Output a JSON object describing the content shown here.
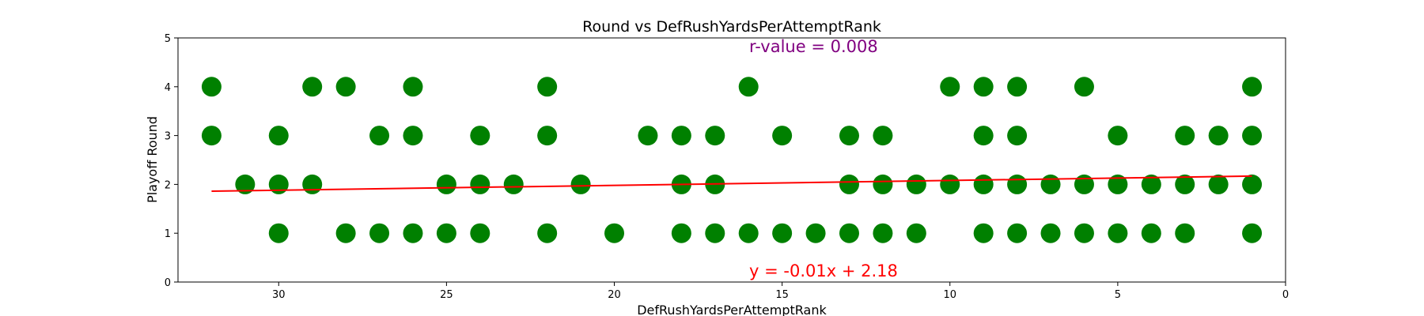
{
  "chart_data": {
    "type": "scatter",
    "title": "Round vs DefRushYardsPerAttemptRank",
    "xlabel": "DefRushYardsPerAttemptRank",
    "ylabel": "Playoff Round",
    "xlim": [
      33,
      0
    ],
    "ylim": [
      0,
      5
    ],
    "x_inverted": true,
    "x_ticks": [
      30,
      25,
      20,
      15,
      10,
      5,
      0
    ],
    "y_ticks": [
      0,
      1,
      2,
      3,
      4,
      5
    ],
    "grid": false,
    "point_color": "#008000",
    "line_color": "#ff0000",
    "rvalue_color": "#800080",
    "annotations": {
      "rvalue": "r-value = 0.008",
      "equation": "y = -0.01x + 2.18"
    },
    "regression": {
      "slope": -0.01,
      "intercept": 2.18,
      "x_range": [
        32,
        1
      ]
    },
    "points": [
      {
        "x": 32,
        "y": 4
      },
      {
        "x": 32,
        "y": 3
      },
      {
        "x": 31,
        "y": 2
      },
      {
        "x": 30,
        "y": 3
      },
      {
        "x": 30,
        "y": 2
      },
      {
        "x": 30,
        "y": 1
      },
      {
        "x": 29,
        "y": 4
      },
      {
        "x": 29,
        "y": 2
      },
      {
        "x": 28,
        "y": 4
      },
      {
        "x": 28,
        "y": 1
      },
      {
        "x": 27,
        "y": 3
      },
      {
        "x": 27,
        "y": 1
      },
      {
        "x": 26,
        "y": 4
      },
      {
        "x": 26,
        "y": 3
      },
      {
        "x": 26,
        "y": 1
      },
      {
        "x": 25,
        "y": 2
      },
      {
        "x": 25,
        "y": 1
      },
      {
        "x": 24,
        "y": 3
      },
      {
        "x": 24,
        "y": 2
      },
      {
        "x": 24,
        "y": 1
      },
      {
        "x": 23,
        "y": 2
      },
      {
        "x": 22,
        "y": 4
      },
      {
        "x": 22,
        "y": 3
      },
      {
        "x": 22,
        "y": 1
      },
      {
        "x": 21,
        "y": 2
      },
      {
        "x": 20,
        "y": 1
      },
      {
        "x": 19,
        "y": 3
      },
      {
        "x": 18,
        "y": 3
      },
      {
        "x": 18,
        "y": 2
      },
      {
        "x": 18,
        "y": 1
      },
      {
        "x": 17,
        "y": 3
      },
      {
        "x": 17,
        "y": 2
      },
      {
        "x": 17,
        "y": 1
      },
      {
        "x": 16,
        "y": 4
      },
      {
        "x": 16,
        "y": 1
      },
      {
        "x": 15,
        "y": 3
      },
      {
        "x": 15,
        "y": 1
      },
      {
        "x": 14,
        "y": 1
      },
      {
        "x": 13,
        "y": 3
      },
      {
        "x": 13,
        "y": 2
      },
      {
        "x": 13,
        "y": 1
      },
      {
        "x": 12,
        "y": 3
      },
      {
        "x": 12,
        "y": 2
      },
      {
        "x": 12,
        "y": 1
      },
      {
        "x": 11,
        "y": 2
      },
      {
        "x": 11,
        "y": 1
      },
      {
        "x": 10,
        "y": 4
      },
      {
        "x": 10,
        "y": 2
      },
      {
        "x": 9,
        "y": 4
      },
      {
        "x": 9,
        "y": 3
      },
      {
        "x": 9,
        "y": 2
      },
      {
        "x": 9,
        "y": 1
      },
      {
        "x": 8,
        "y": 4
      },
      {
        "x": 8,
        "y": 3
      },
      {
        "x": 8,
        "y": 2
      },
      {
        "x": 8,
        "y": 1
      },
      {
        "x": 7,
        "y": 2
      },
      {
        "x": 7,
        "y": 1
      },
      {
        "x": 6,
        "y": 4
      },
      {
        "x": 6,
        "y": 2
      },
      {
        "x": 6,
        "y": 1
      },
      {
        "x": 5,
        "y": 3
      },
      {
        "x": 5,
        "y": 2
      },
      {
        "x": 5,
        "y": 1
      },
      {
        "x": 4,
        "y": 2
      },
      {
        "x": 4,
        "y": 1
      },
      {
        "x": 3,
        "y": 3
      },
      {
        "x": 3,
        "y": 2
      },
      {
        "x": 3,
        "y": 1
      },
      {
        "x": 2,
        "y": 3
      },
      {
        "x": 2,
        "y": 2
      },
      {
        "x": 1,
        "y": 4
      },
      {
        "x": 1,
        "y": 3
      },
      {
        "x": 1,
        "y": 2
      },
      {
        "x": 1,
        "y": 1
      }
    ]
  }
}
